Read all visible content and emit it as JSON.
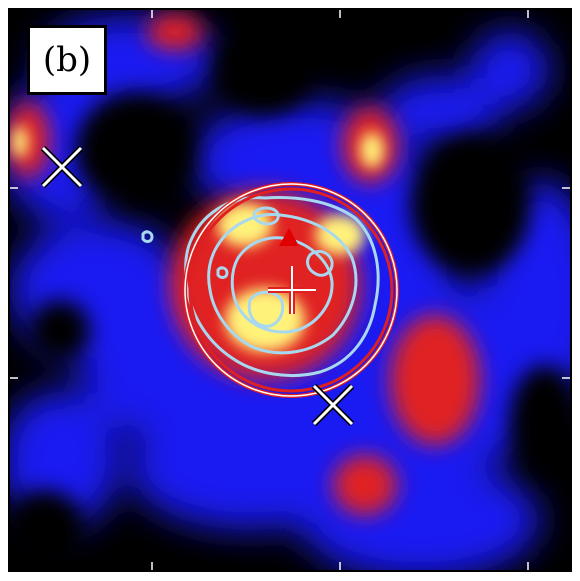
{
  "panel": {
    "label": "(b)"
  },
  "colors": {
    "background": "#000000",
    "map_low": "#1c1cff",
    "map_mid": "#e02020",
    "map_high": "#fff27a",
    "contour": "#a8d8f0",
    "circle": "#e02020",
    "marker_triangle": "#e00000",
    "marker_cross": "#ffffff"
  },
  "markers": {
    "x_sources": [
      "x-marker-upper-left",
      "x-marker-lower-center"
    ],
    "center": "plus-marker",
    "peak": "triangle-marker"
  }
}
